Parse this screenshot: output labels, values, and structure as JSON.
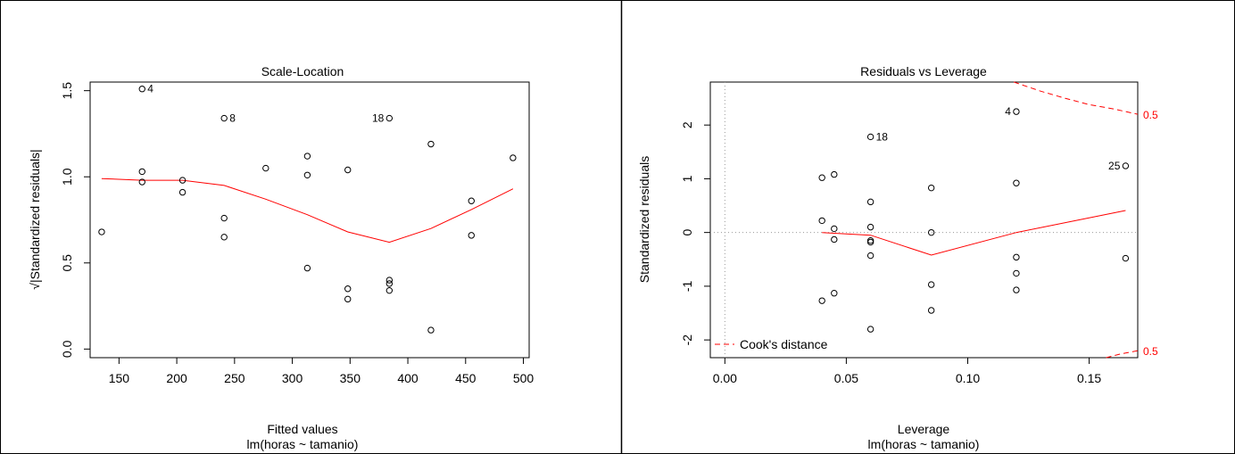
{
  "chart_data": [
    {
      "type": "scatter",
      "title": "Scale-Location",
      "xlabel": "Fitted values",
      "subtitle": "lm(horas ~ tamanio)",
      "ylabel": "√|Standardized residuals|",
      "xlim": [
        125,
        505
      ],
      "ylim": [
        -0.05,
        1.55
      ],
      "xticks": [
        "150",
        "200",
        "250",
        "300",
        "350",
        "400",
        "450",
        "500"
      ],
      "xtick_values": [
        150,
        200,
        250,
        300,
        350,
        400,
        450,
        500
      ],
      "yticks": [
        "0.0",
        "0.5",
        "1.0",
        "1.5"
      ],
      "ytick_values": [
        0.0,
        0.5,
        1.0,
        1.5
      ],
      "points": [
        {
          "x": 135,
          "y": 0.68
        },
        {
          "x": 170,
          "y": 1.51,
          "label": "4"
        },
        {
          "x": 170,
          "y": 1.03
        },
        {
          "x": 170,
          "y": 0.97
        },
        {
          "x": 205,
          "y": 0.98
        },
        {
          "x": 205,
          "y": 0.91
        },
        {
          "x": 241,
          "y": 1.34,
          "label": "8"
        },
        {
          "x": 241,
          "y": 0.76
        },
        {
          "x": 241,
          "y": 0.65
        },
        {
          "x": 277,
          "y": 1.05
        },
        {
          "x": 313,
          "y": 1.12
        },
        {
          "x": 313,
          "y": 1.01
        },
        {
          "x": 313,
          "y": 0.47
        },
        {
          "x": 348,
          "y": 1.04
        },
        {
          "x": 348,
          "y": 0.35
        },
        {
          "x": 348,
          "y": 0.29
        },
        {
          "x": 384,
          "y": 1.34,
          "label": "18",
          "label_side": "left"
        },
        {
          "x": 384,
          "y": 0.4
        },
        {
          "x": 384,
          "y": 0.38
        },
        {
          "x": 384,
          "y": 0.34
        },
        {
          "x": 420,
          "y": 1.19
        },
        {
          "x": 420,
          "y": 0.11
        },
        {
          "x": 455,
          "y": 0.86
        },
        {
          "x": 455,
          "y": 0.66
        },
        {
          "x": 491,
          "y": 1.11
        }
      ],
      "smooth": {
        "color": "#ff0000",
        "x": [
          135,
          170,
          205,
          241,
          277,
          313,
          348,
          384,
          420,
          455,
          491
        ],
        "y": [
          0.99,
          0.98,
          0.98,
          0.95,
          0.87,
          0.78,
          0.68,
          0.62,
          0.7,
          0.81,
          0.93
        ]
      }
    },
    {
      "type": "scatter",
      "title": "Residuals vs Leverage",
      "xlabel": "Leverage",
      "subtitle": "lm(horas ~ tamanio)",
      "ylabel": "Standardized residuals",
      "xlim": [
        -0.006,
        0.17
      ],
      "ylim": [
        -2.33,
        2.8
      ],
      "xticks": [
        "0.00",
        "0.05",
        "0.10",
        "0.15"
      ],
      "xtick_values": [
        0.0,
        0.05,
        0.1,
        0.15
      ],
      "yticks": [
        "-2",
        "-1",
        "0",
        "1",
        "2"
      ],
      "ytick_values": [
        -2,
        -1,
        0,
        1,
        2
      ],
      "points": [
        {
          "x": 0.04,
          "y": 1.02
        },
        {
          "x": 0.04,
          "y": 0.22
        },
        {
          "x": 0.04,
          "y": -1.27
        },
        {
          "x": 0.045,
          "y": 1.08
        },
        {
          "x": 0.045,
          "y": 0.07
        },
        {
          "x": 0.045,
          "y": -0.13
        },
        {
          "x": 0.045,
          "y": -1.13
        },
        {
          "x": 0.06,
          "y": 1.78,
          "label": "18"
        },
        {
          "x": 0.06,
          "y": 0.57
        },
        {
          "x": 0.06,
          "y": 0.1
        },
        {
          "x": 0.06,
          "y": -0.15
        },
        {
          "x": 0.06,
          "y": -0.18
        },
        {
          "x": 0.06,
          "y": -0.43
        },
        {
          "x": 0.06,
          "y": -1.8
        },
        {
          "x": 0.085,
          "y": 0.83
        },
        {
          "x": 0.085,
          "y": 0.0
        },
        {
          "x": 0.085,
          "y": -0.97
        },
        {
          "x": 0.085,
          "y": -1.45
        },
        {
          "x": 0.12,
          "y": 2.25,
          "label": "4",
          "label_side": "left"
        },
        {
          "x": 0.12,
          "y": 0.92
        },
        {
          "x": 0.12,
          "y": -0.46
        },
        {
          "x": 0.12,
          "y": -0.76
        },
        {
          "x": 0.12,
          "y": -1.07
        },
        {
          "x": 0.165,
          "y": 1.24,
          "label": "25",
          "label_side": "left"
        },
        {
          "x": 0.165,
          "y": -0.48
        }
      ],
      "smooth": {
        "color": "#ff0000",
        "x": [
          0.04,
          0.06,
          0.085,
          0.12,
          0.165
        ],
        "y": [
          0.0,
          -0.05,
          -0.42,
          0.0,
          0.41
        ]
      },
      "cooks_distance": {
        "legend": "Cook's distance",
        "legend_position": "bottom-left",
        "contour_label": "0.5",
        "color": "#ff0000",
        "upper": {
          "x": [
            0.119,
            0.13,
            0.14,
            0.15,
            0.16,
            0.17
          ],
          "y": [
            2.8,
            2.63,
            2.5,
            2.38,
            2.3,
            2.2
          ]
        },
        "lower": {
          "x": [
            0.157,
            0.163,
            0.17
          ],
          "y": [
            -2.33,
            -2.26,
            -2.2
          ]
        }
      },
      "reference_lines": {
        "h": 0,
        "v": 0,
        "style": "dotted",
        "color": "#999999"
      }
    }
  ]
}
